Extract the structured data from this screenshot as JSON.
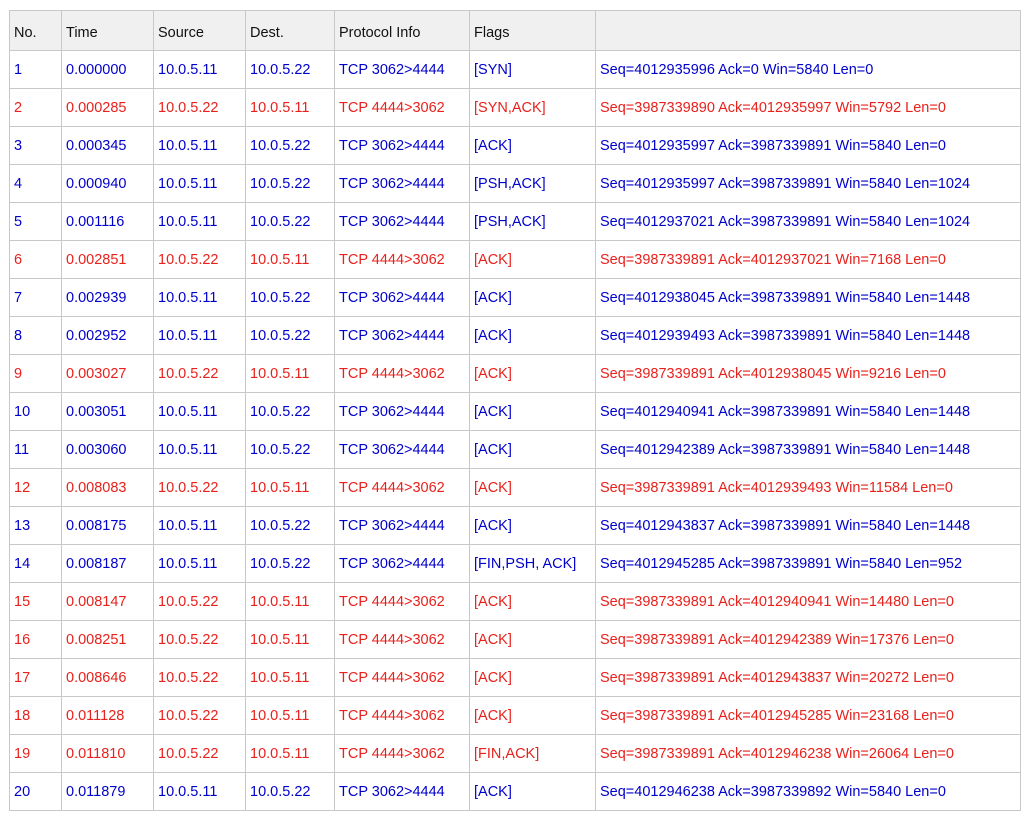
{
  "colors": {
    "client_text": "#0000cc",
    "server_text": "#e8211c",
    "header_bg": "#f0f0f0",
    "grid": "#c8c8c8"
  },
  "table": {
    "headers": [
      "No.",
      "Time",
      "Source",
      "Dest.",
      "Protocol Info",
      "Flags",
      ""
    ],
    "rows": [
      {
        "no": "1",
        "time": "0.000000",
        "source": "10.0.5.11",
        "dest": "10.0.5.22",
        "protocol": "TCP 3062>4444",
        "flags": "[SYN]",
        "info": "Seq=4012935996 Ack=0 Win=5840 Len=0",
        "direction": "client"
      },
      {
        "no": "2",
        "time": "0.000285",
        "source": "10.0.5.22",
        "dest": "10.0.5.11",
        "protocol": "TCP 4444>3062",
        "flags": "[SYN,ACK]",
        "info": "Seq=3987339890 Ack=4012935997 Win=5792 Len=0",
        "direction": "server"
      },
      {
        "no": "3",
        "time": "0.000345",
        "source": "10.0.5.11",
        "dest": "10.0.5.22",
        "protocol": "TCP 3062>4444",
        "flags": "[ACK]",
        "info": "Seq=4012935997 Ack=3987339891 Win=5840 Len=0",
        "direction": "client"
      },
      {
        "no": "4",
        "time": "0.000940",
        "source": "10.0.5.11",
        "dest": "10.0.5.22",
        "protocol": "TCP 3062>4444",
        "flags": "[PSH,ACK]",
        "info": "Seq=4012935997 Ack=3987339891 Win=5840 Len=1024",
        "direction": "client"
      },
      {
        "no": "5",
        "time": "0.001116",
        "source": "10.0.5.11",
        "dest": "10.0.5.22",
        "protocol": "TCP 3062>4444",
        "flags": "[PSH,ACK]",
        "info": "Seq=4012937021 Ack=3987339891 Win=5840 Len=1024",
        "direction": "client"
      },
      {
        "no": "6",
        "time": "0.002851",
        "source": "10.0.5.22",
        "dest": "10.0.5.11",
        "protocol": "TCP 4444>3062",
        "flags": "[ACK]",
        "info": "Seq=3987339891 Ack=4012937021 Win=7168 Len=0",
        "direction": "server"
      },
      {
        "no": "7",
        "time": "0.002939",
        "source": "10.0.5.11",
        "dest": "10.0.5.22",
        "protocol": "TCP 3062>4444",
        "flags": "[ACK]",
        "info": "Seq=4012938045 Ack=3987339891 Win=5840 Len=1448",
        "direction": "client"
      },
      {
        "no": "8",
        "time": "0.002952",
        "source": "10.0.5.11",
        "dest": "10.0.5.22",
        "protocol": "TCP 3062>4444",
        "flags": "[ACK]",
        "info": "Seq=4012939493 Ack=3987339891 Win=5840 Len=1448",
        "direction": "client"
      },
      {
        "no": "9",
        "time": "0.003027",
        "source": "10.0.5.22",
        "dest": "10.0.5.11",
        "protocol": "TCP 4444>3062",
        "flags": "[ACK]",
        "info": "Seq=3987339891 Ack=4012938045 Win=9216 Len=0",
        "direction": "server"
      },
      {
        "no": "10",
        "time": "0.003051",
        "source": "10.0.5.11",
        "dest": "10.0.5.22",
        "protocol": "TCP 3062>4444",
        "flags": "[ACK]",
        "info": "Seq=4012940941 Ack=3987339891 Win=5840 Len=1448",
        "direction": "client"
      },
      {
        "no": "11",
        "time": "0.003060",
        "source": "10.0.5.11",
        "dest": "10.0.5.22",
        "protocol": "TCP 3062>4444",
        "flags": "[ACK]",
        "info": "Seq=4012942389 Ack=3987339891 Win=5840 Len=1448",
        "direction": "client"
      },
      {
        "no": "12",
        "time": "0.008083",
        "source": "10.0.5.22",
        "dest": "10.0.5.11",
        "protocol": "TCP 4444>3062",
        "flags": "[ACK]",
        "info": "Seq=3987339891 Ack=4012939493 Win=11584 Len=0",
        "direction": "server"
      },
      {
        "no": "13",
        "time": "0.008175",
        "source": "10.0.5.11",
        "dest": "10.0.5.22",
        "protocol": "TCP 3062>4444",
        "flags": "[ACK]",
        "info": "Seq=4012943837 Ack=3987339891 Win=5840 Len=1448",
        "direction": "client"
      },
      {
        "no": "14",
        "time": "0.008187",
        "source": "10.0.5.11",
        "dest": "10.0.5.22",
        "protocol": "TCP 3062>4444",
        "flags": "[FIN,PSH, ACK]",
        "info": "Seq=4012945285 Ack=3987339891 Win=5840 Len=952",
        "direction": "client"
      },
      {
        "no": "15",
        "time": "0.008147",
        "source": "10.0.5.22",
        "dest": "10.0.5.11",
        "protocol": "TCP 4444>3062",
        "flags": "[ACK]",
        "info": "Seq=3987339891 Ack=4012940941 Win=14480 Len=0",
        "direction": "server"
      },
      {
        "no": "16",
        "time": "0.008251",
        "source": "10.0.5.22",
        "dest": "10.0.5.11",
        "protocol": "TCP 4444>3062",
        "flags": "[ACK]",
        "info": "Seq=3987339891 Ack=4012942389 Win=17376 Len=0",
        "direction": "server"
      },
      {
        "no": "17",
        "time": "0.008646",
        "source": "10.0.5.22",
        "dest": "10.0.5.11",
        "protocol": "TCP 4444>3062",
        "flags": "[ACK]",
        "info": "Seq=3987339891 Ack=4012943837 Win=20272 Len=0",
        "direction": "server"
      },
      {
        "no": "18",
        "time": "0.011128",
        "source": "10.0.5.22",
        "dest": "10.0.5.11",
        "protocol": "TCP 4444>3062",
        "flags": "[ACK]",
        "info": "Seq=3987339891 Ack=4012945285 Win=23168 Len=0",
        "direction": "server"
      },
      {
        "no": "19",
        "time": "0.011810",
        "source": "10.0.5.22",
        "dest": "10.0.5.11",
        "protocol": "TCP 4444>3062",
        "flags": "[FIN,ACK]",
        "info": "Seq=3987339891 Ack=4012946238 Win=26064 Len=0",
        "direction": "server"
      },
      {
        "no": "20",
        "time": "0.011879",
        "source": "10.0.5.11",
        "dest": "10.0.5.22",
        "protocol": "TCP 3062>4444",
        "flags": "[ACK]",
        "info": "Seq=4012946238 Ack=3987339892 Win=5840 Len=0",
        "direction": "client"
      }
    ]
  }
}
